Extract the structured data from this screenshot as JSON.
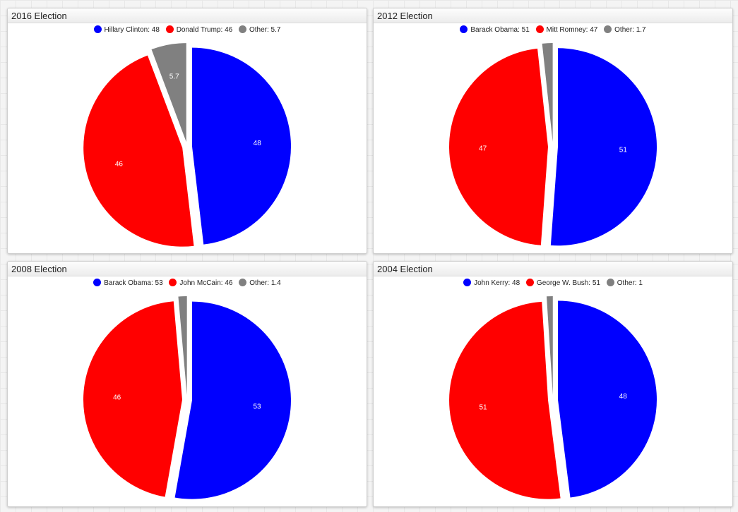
{
  "chart_data": [
    {
      "type": "pie",
      "title": "2016 Election",
      "series": [
        {
          "name": "Hillary Clinton",
          "value": 48,
          "color": "#0000ff",
          "legend": "Hillary Clinton: 48",
          "label": "48"
        },
        {
          "name": "Donald Trump",
          "value": 46,
          "color": "#ff0000",
          "legend": "Donald Trump: 46",
          "label": "46"
        },
        {
          "name": "Other",
          "value": 5.7,
          "color": "#808080",
          "legend": "Other: 5.7",
          "label": "5.7"
        }
      ],
      "legend_position": "top-center"
    },
    {
      "type": "pie",
      "title": "2012 Election",
      "series": [
        {
          "name": "Barack Obama",
          "value": 51,
          "color": "#0000ff",
          "legend": "Barack Obama: 51",
          "label": "51"
        },
        {
          "name": "Mitt Romney",
          "value": 47,
          "color": "#ff0000",
          "legend": "Mitt Romney: 47",
          "label": "47"
        },
        {
          "name": "Other",
          "value": 1.7,
          "color": "#808080",
          "legend": "Other: 1.7",
          "label": ""
        }
      ],
      "legend_position": "top-center"
    },
    {
      "type": "pie",
      "title": "2008 Election",
      "series": [
        {
          "name": "Barack Obama",
          "value": 53,
          "color": "#0000ff",
          "legend": "Barack Obama: 53",
          "label": "53"
        },
        {
          "name": "John McCain",
          "value": 46,
          "color": "#ff0000",
          "legend": "John McCain: 46",
          "label": "46"
        },
        {
          "name": "Other",
          "value": 1.4,
          "color": "#808080",
          "legend": "Other: 1.4",
          "label": ""
        }
      ],
      "legend_position": "top-center"
    },
    {
      "type": "pie",
      "title": "2004 Election",
      "series": [
        {
          "name": "John Kerry",
          "value": 48,
          "color": "#0000ff",
          "legend": "John Kerry: 48",
          "label": "48"
        },
        {
          "name": "George W. Bush",
          "value": 51,
          "color": "#ff0000",
          "legend": "George W. Bush: 51",
          "label": "51"
        },
        {
          "name": "Other",
          "value": 1,
          "color": "#808080",
          "legend": "Other: 1",
          "label": ""
        }
      ],
      "legend_position": "top-center"
    }
  ]
}
